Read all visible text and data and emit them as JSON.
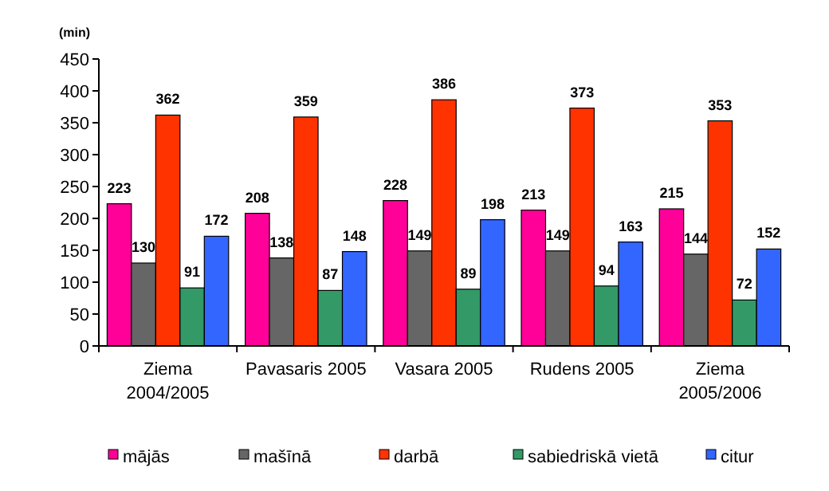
{
  "chart_data": {
    "type": "bar",
    "ylabel": "(min)",
    "categories": [
      "Ziema 2004/2005",
      "Pavasaris 2005",
      "Vasara 2005",
      "Rudens 2005",
      "Ziema 2005/2006"
    ],
    "series": [
      {
        "name": "mājās",
        "color": "#ff0099",
        "values": [
          223,
          208,
          228,
          213,
          215
        ]
      },
      {
        "name": "mašīnā",
        "color": "#666666",
        "values": [
          130,
          138,
          149,
          149,
          144
        ]
      },
      {
        "name": "darbā",
        "color": "#ff3300",
        "values": [
          362,
          359,
          386,
          373,
          353
        ]
      },
      {
        "name": "sabiedriskā vietā",
        "color": "#339966",
        "values": [
          91,
          87,
          89,
          94,
          72
        ]
      },
      {
        "name": "citur",
        "color": "#3366ff",
        "values": [
          172,
          148,
          198,
          163,
          152
        ]
      }
    ],
    "ylim": [
      0,
      450
    ],
    "yticks": [
      0,
      50,
      100,
      150,
      200,
      250,
      300,
      350,
      400,
      450
    ],
    "data_labels": true,
    "legend": "bottom",
    "grid": false
  }
}
